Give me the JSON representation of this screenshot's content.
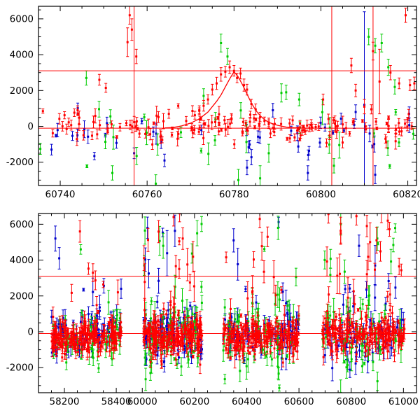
{
  "figure": {
    "description": "Two-panel light curve scatter plot (flux vs MJD) with red/green/blue points, error bars, red reference lines and a red model curve peaking near MJD 60780.",
    "colors": {
      "red": "#ff0000",
      "green": "#00cc00",
      "blue": "#0000cc",
      "frame": "#000000",
      "background": "#ffffff"
    }
  },
  "chart_data": [
    {
      "id": "top",
      "type": "scatter",
      "x_axis": {
        "lim": [
          60735,
          60822
        ],
        "major_ticks": [
          60740,
          60760,
          60780,
          60800,
          60820
        ],
        "minor_step": 5
      },
      "y_axis": {
        "lim": [
          -3300,
          6700
        ],
        "major_ticks": [
          -2000,
          0,
          2000,
          4000,
          6000
        ],
        "minor_step": 500
      },
      "ref_lines": {
        "horizontal": [
          {
            "y": 3100,
            "color": "red"
          },
          {
            "y": -100,
            "color": "red"
          }
        ],
        "vertical": [
          {
            "x": 60757,
            "color": "red"
          },
          {
            "x": 60802.5,
            "color": "red"
          },
          {
            "x": 60812,
            "color": "red"
          }
        ]
      },
      "model_curve": {
        "color": "red",
        "points": [
          [
            60764,
            -90
          ],
          [
            60766,
            -60
          ],
          [
            60768,
            30
          ],
          [
            60770,
            180
          ],
          [
            60772,
            420
          ],
          [
            60774,
            800
          ],
          [
            60776,
            1400
          ],
          [
            60777,
            1750
          ],
          [
            60778,
            2200
          ],
          [
            60779,
            2650
          ],
          [
            60780,
            3050
          ],
          [
            60781,
            2750
          ],
          [
            60782,
            2300
          ],
          [
            60783,
            1800
          ],
          [
            60784,
            1300
          ],
          [
            60785,
            900
          ],
          [
            60786,
            600
          ],
          [
            60787,
            380
          ],
          [
            60788,
            220
          ],
          [
            60790,
            60
          ],
          [
            60792,
            -40
          ],
          [
            60794,
            -80
          ],
          [
            60796,
            -95
          ]
        ]
      },
      "explicit_points": {
        "red": [
          [
            60749,
            2600,
            300
          ],
          [
            60750.5,
            2150,
            250
          ],
          [
            60755.5,
            4700,
            800
          ],
          [
            60756,
            6200,
            500
          ],
          [
            60756.5,
            5400,
            600
          ],
          [
            60757.5,
            3900,
            400
          ],
          [
            60769,
            300,
            250
          ],
          [
            60771,
            620,
            220
          ],
          [
            60772,
            900,
            250
          ],
          [
            60773,
            1150,
            300
          ],
          [
            60774,
            1500,
            260
          ],
          [
            60775,
            2050,
            300
          ],
          [
            60776,
            2400,
            340
          ],
          [
            60777,
            2900,
            380
          ],
          [
            60778,
            3050,
            300
          ],
          [
            60779,
            3300,
            350
          ],
          [
            60780,
            3100,
            300
          ],
          [
            60780.7,
            2700,
            260
          ],
          [
            60781.5,
            2950,
            300
          ],
          [
            60782.3,
            2300,
            340
          ],
          [
            60783,
            2050,
            300
          ],
          [
            60784,
            1250,
            260
          ],
          [
            60785,
            950,
            300
          ],
          [
            60786,
            520,
            260
          ],
          [
            60787,
            300,
            220
          ],
          [
            60788,
            120,
            240
          ],
          [
            60789,
            -80,
            210
          ],
          [
            60800.5,
            1500,
            300
          ],
          [
            60805,
            -900,
            300
          ],
          [
            60807,
            3400,
            400
          ],
          [
            60808,
            2000,
            350
          ],
          [
            60810,
            1100,
            400
          ],
          [
            60812,
            4200,
            500
          ],
          [
            60813.5,
            2500,
            1800
          ],
          [
            60816,
            3000,
            400
          ],
          [
            60818,
            2400,
            300
          ],
          [
            60819.5,
            6200,
            400
          ],
          [
            60820.5,
            2300,
            300
          ],
          [
            60821.5,
            2400,
            350
          ],
          [
            60744,
            900,
            250
          ],
          [
            60741,
            620,
            200
          ],
          [
            60765,
            700,
            250
          ]
        ],
        "green": [
          [
            60746,
            2700,
            400
          ],
          [
            60752,
            -2600,
            400
          ],
          [
            60762,
            -3200,
            500
          ],
          [
            60777,
            4650,
            500
          ],
          [
            60778.5,
            3900,
            450
          ],
          [
            60781,
            -3000,
            600
          ],
          [
            60786,
            -2900,
            700
          ],
          [
            60792,
            1900,
            400
          ],
          [
            60803,
            -2200,
            400
          ],
          [
            60811,
            5000,
            450
          ],
          [
            60812.5,
            4500,
            400
          ],
          [
            60814,
            4650,
            500
          ],
          [
            60815.5,
            3300,
            450
          ],
          [
            60817,
            2200,
            400
          ],
          [
            60795,
            1500,
            350
          ],
          [
            60773,
            1700,
            400
          ],
          [
            60788,
            -1500,
            500
          ]
        ],
        "blue": [
          [
            60810,
            1200,
            5200
          ],
          [
            60808,
            800,
            400
          ],
          [
            60812.5,
            -2700,
            500
          ],
          [
            60797,
            -2600,
            400
          ],
          [
            60757,
            -1500,
            300
          ],
          [
            60764,
            -1900,
            350
          ],
          [
            60783,
            -2300,
            400
          ],
          [
            60738,
            -1300,
            300
          ]
        ]
      },
      "noise_clusters": [
        {
          "series": "red",
          "x": [
            60735,
            60822
          ],
          "n": 150,
          "y_mean": -80,
          "y_sd": 400,
          "e_mean": 220,
          "e_sd": 120
        },
        {
          "series": "green",
          "x": [
            60735,
            60822
          ],
          "n": 30,
          "y_mean": -300,
          "y_sd": 1100,
          "e_mean": 420,
          "e_sd": 200
        },
        {
          "series": "blue",
          "x": [
            60735,
            60822
          ],
          "n": 40,
          "y_mean": -450,
          "y_sd": 600,
          "e_mean": 320,
          "e_sd": 150
        }
      ]
    },
    {
      "id": "bottom",
      "type": "scatter",
      "x_axis": {
        "segments": [
          {
            "data": [
              58100,
              58450
            ],
            "frac": [
              0,
              0.24
            ]
          },
          {
            "data": [
              59950,
              61050
            ],
            "frac": [
              0.24,
              1
            ]
          }
        ],
        "major_ticks": [
          58200,
          58400,
          60000,
          60200,
          60400,
          60600,
          60800,
          61000
        ],
        "minor_step": 50
      },
      "y_axis": {
        "lim": [
          -3400,
          6600
        ],
        "major_ticks": [
          -2000,
          0,
          2000,
          4000,
          6000
        ],
        "minor_step": 500
      },
      "ref_lines": {
        "horizontal": [
          {
            "y": 3100,
            "color": "red"
          },
          {
            "y": -100,
            "color": "red"
          }
        ],
        "vertical": []
      },
      "explicit_points": {
        "red": [
          [
            58260,
            5600,
            600
          ],
          [
            58310,
            3300,
            500
          ],
          [
            60120,
            6400,
            500
          ],
          [
            60155,
            5200,
            600
          ],
          [
            60450,
            6300,
            500
          ],
          [
            60480,
            5300,
            550
          ],
          [
            60760,
            5500,
            550
          ],
          [
            60820,
            6450,
            500
          ],
          [
            60860,
            5900,
            600
          ],
          [
            60940,
            6200,
            500
          ]
        ],
        "green": [
          [
            60080,
            4800,
            700
          ],
          [
            60210,
            5500,
            700
          ],
          [
            60520,
            5800,
            650
          ],
          [
            60760,
            6000,
            600
          ],
          [
            60900,
            5200,
            650
          ]
        ],
        "blue": [
          [
            58165,
            5200,
            700
          ],
          [
            58180,
            4100,
            600
          ],
          [
            60020,
            5800,
            600
          ],
          [
            60350,
            5100,
            650
          ],
          [
            60830,
            4800,
            600
          ]
        ]
      },
      "noise_clusters": [
        {
          "series": "red",
          "x": [
            58150,
            58420
          ],
          "n": 180,
          "y_mean": -250,
          "y_sd": 450,
          "e_mean": 300,
          "e_sd": 150
        },
        {
          "series": "blue",
          "x": [
            58150,
            58420
          ],
          "n": 80,
          "y_mean": -150,
          "y_sd": 600,
          "e_mean": 350,
          "e_sd": 150
        },
        {
          "series": "green",
          "x": [
            58150,
            58420
          ],
          "n": 50,
          "y_mean": -300,
          "y_sd": 800,
          "e_mean": 400,
          "e_sd": 200
        },
        {
          "series": "red",
          "x": [
            58150,
            58420
          ],
          "n": 6,
          "y_mean": 2800,
          "y_sd": 1300,
          "e_mean": 500,
          "e_sd": 200
        },
        {
          "series": "blue",
          "x": [
            58150,
            58420
          ],
          "n": 5,
          "y_mean": 3000,
          "y_sd": 1400,
          "e_mean": 500,
          "e_sd": 200
        },
        {
          "series": "green",
          "x": [
            58150,
            58420
          ],
          "n": 4,
          "y_mean": 2200,
          "y_sd": 1200,
          "e_mean": 500,
          "e_sd": 200
        },
        {
          "series": "red",
          "x": [
            60005,
            60230
          ],
          "n": 200,
          "y_mean": -250,
          "y_sd": 500,
          "e_mean": 300,
          "e_sd": 150
        },
        {
          "series": "red",
          "x": [
            60005,
            60230
          ],
          "n": 18,
          "y_mean": 3200,
          "y_sd": 1500,
          "e_mean": 600,
          "e_sd": 250
        },
        {
          "series": "green",
          "x": [
            60005,
            60230
          ],
          "n": 60,
          "y_mean": -350,
          "y_sd": 1000,
          "e_mean": 450,
          "e_sd": 200
        },
        {
          "series": "green",
          "x": [
            60005,
            60230
          ],
          "n": 10,
          "y_mean": 3000,
          "y_sd": 1700,
          "e_mean": 550,
          "e_sd": 250
        },
        {
          "series": "blue",
          "x": [
            60005,
            60230
          ],
          "n": 80,
          "y_mean": -200,
          "y_sd": 700,
          "e_mean": 380,
          "e_sd": 170
        },
        {
          "series": "blue",
          "x": [
            60005,
            60230
          ],
          "n": 8,
          "y_mean": 2800,
          "y_sd": 1600,
          "e_mean": 550,
          "e_sd": 250
        },
        {
          "series": "red",
          "x": [
            60310,
            60600
          ],
          "n": 200,
          "y_mean": -250,
          "y_sd": 500,
          "e_mean": 300,
          "e_sd": 150
        },
        {
          "series": "red",
          "x": [
            60310,
            60600
          ],
          "n": 14,
          "y_mean": 3000,
          "y_sd": 1400,
          "e_mean": 600,
          "e_sd": 250
        },
        {
          "series": "green",
          "x": [
            60310,
            60600
          ],
          "n": 60,
          "y_mean": -350,
          "y_sd": 950,
          "e_mean": 450,
          "e_sd": 200
        },
        {
          "series": "green",
          "x": [
            60310,
            60600
          ],
          "n": 8,
          "y_mean": 2800,
          "y_sd": 1600,
          "e_mean": 550,
          "e_sd": 250
        },
        {
          "series": "blue",
          "x": [
            60310,
            60600
          ],
          "n": 80,
          "y_mean": -250,
          "y_sd": 700,
          "e_mean": 380,
          "e_sd": 170
        },
        {
          "series": "blue",
          "x": [
            60310,
            60600
          ],
          "n": 6,
          "y_mean": 2600,
          "y_sd": 1500,
          "e_mean": 550,
          "e_sd": 250
        },
        {
          "series": "red",
          "x": [
            60690,
            61005
          ],
          "n": 200,
          "y_mean": -200,
          "y_sd": 550,
          "e_mean": 300,
          "e_sd": 150
        },
        {
          "series": "red",
          "x": [
            60690,
            61005
          ],
          "n": 20,
          "y_mean": 3500,
          "y_sd": 1500,
          "e_mean": 600,
          "e_sd": 250
        },
        {
          "series": "green",
          "x": [
            60690,
            61005
          ],
          "n": 55,
          "y_mean": -350,
          "y_sd": 1000,
          "e_mean": 450,
          "e_sd": 200
        },
        {
          "series": "green",
          "x": [
            60690,
            61005
          ],
          "n": 10,
          "y_mean": 3200,
          "y_sd": 1800,
          "e_mean": 550,
          "e_sd": 250
        },
        {
          "series": "blue",
          "x": [
            60690,
            61005
          ],
          "n": 70,
          "y_mean": -250,
          "y_sd": 750,
          "e_mean": 380,
          "e_sd": 170
        },
        {
          "series": "blue",
          "x": [
            60690,
            61005
          ],
          "n": 8,
          "y_mean": 2800,
          "y_sd": 1600,
          "e_mean": 550,
          "e_sd": 250
        }
      ]
    }
  ],
  "render": {
    "seed": 7
  }
}
